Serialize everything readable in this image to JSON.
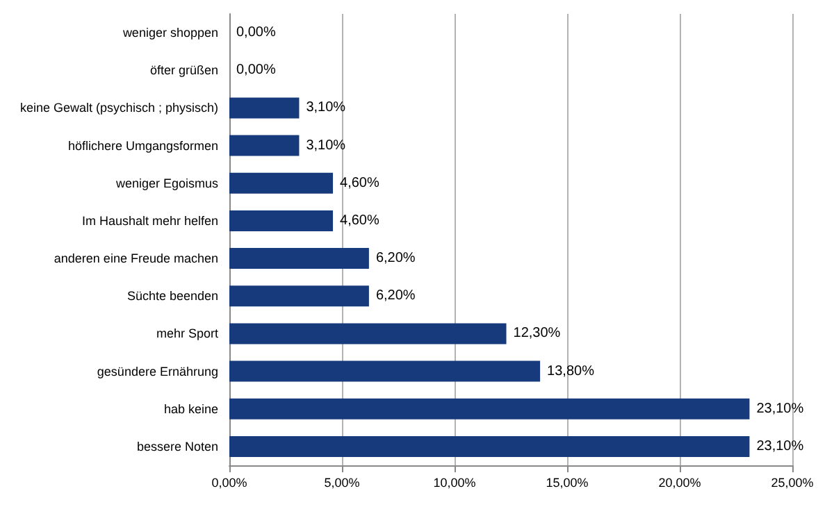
{
  "chart_data": {
    "type": "bar",
    "orientation": "horizontal",
    "categories": [
      "weniger shoppen",
      "öfter grüßen",
      "keine Gewalt (psychisch ; physisch)",
      "höflichere Umgangsformen",
      "weniger Egoismus",
      "Im Haushalt mehr helfen",
      "anderen eine Freude machen",
      "Süchte beenden",
      "mehr Sport",
      "gesündere Ernährung",
      "hab keine",
      "bessere Noten"
    ],
    "values": [
      0,
      0,
      3.1,
      3.1,
      4.6,
      4.6,
      6.2,
      6.2,
      12.3,
      13.8,
      23.1,
      23.1
    ],
    "value_labels": [
      "0,00%",
      "0,00%",
      "3,10%",
      "3,10%",
      "4,60%",
      "4,60%",
      "6,20%",
      "6,20%",
      "12,30%",
      "13,80%",
      "23,10%",
      "23,10%"
    ],
    "color": "#173a7c",
    "xlim": [
      0,
      25
    ],
    "xticks": [
      {
        "value": 0,
        "label": "0,00%"
      },
      {
        "value": 5,
        "label": "5,00%"
      },
      {
        "value": 10,
        "label": "10,00%"
      },
      {
        "value": 15,
        "label": "15,00%"
      },
      {
        "value": 20,
        "label": "20,00%"
      },
      {
        "value": 25,
        "label": "25,00%"
      }
    ],
    "grid": "x"
  }
}
